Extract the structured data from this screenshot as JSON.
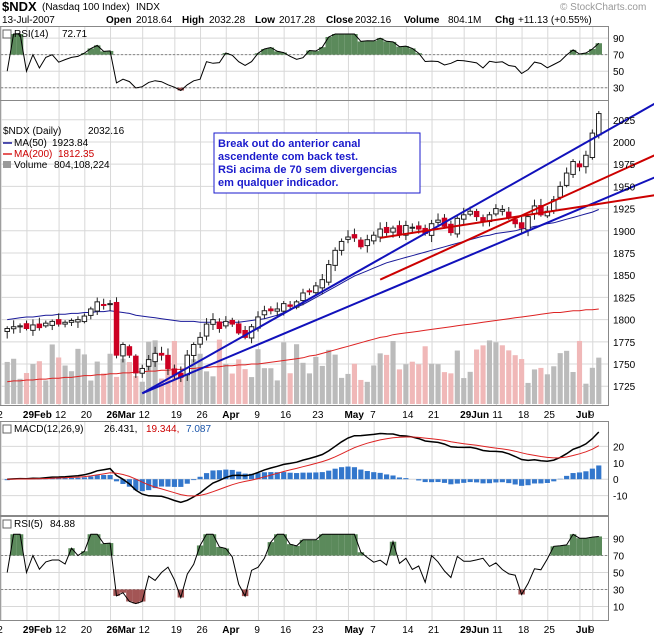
{
  "header": {
    "symbol": "$NDX",
    "name": "(Nasdaq 100 Index)",
    "exchange": "INDX",
    "watermark": "© StockCharts.com",
    "date": "13-Jul-2007",
    "open_label": "Open",
    "open": "2018.64",
    "high_label": "High",
    "high": "2032.28",
    "low_label": "Low",
    "low": "2017.28",
    "close_label": "Close",
    "close": "2032.16",
    "volume_label": "Volume",
    "volume": "804.1M",
    "chg_label": "Chg",
    "chg": "+11.13 (+0.55%)"
  },
  "colors": {
    "up": "#222222",
    "down": "#cc0022",
    "ma50": "#1a1a99",
    "ma200": "#dd2222",
    "trend_blue": "#1111bb",
    "channel_red": "#cc0000",
    "macd": "#000000",
    "signal": "#dd2222",
    "hist": "#3377cc",
    "vol_up": "#bbbbbb",
    "vol_down": "#f0b8b8",
    "rsi_fill_hi": "#5b8a5b",
    "rsi_fill_lo": "#a35555"
  },
  "panels": {
    "rsi14": {
      "label": "RSI(14)",
      "value": "72.71"
    },
    "price": {
      "title": "$NDX (Daily)",
      "title_value": "2032.16",
      "ma50_label": "MA(50)",
      "ma50_value": "1923.84",
      "ma200_label": "MA(200)",
      "ma200_value": "1812.35",
      "volume_label": "Volume",
      "volume_value": "804,108,224"
    },
    "macd": {
      "label": "MACD(12,26,9)",
      "v1": "26.431,",
      "v2": "19.344,",
      "v3": "7.087"
    },
    "rsi5": {
      "label": "RSI(5)",
      "value": "84.88"
    }
  },
  "annotation": {
    "lines": [
      "Break out do anterior canal",
      "ascendente com back test.",
      "RSi acima de 70 sem divergencias",
      "em qualquer indicador."
    ]
  },
  "chart_data": {
    "type": "candlestick",
    "title": "$NDX (Nasdaq 100 Index) Daily",
    "x_labels": [
      "2",
      "29Feb",
      "12",
      "20",
      "26Mar",
      "12",
      "19",
      "26",
      "Apr",
      "9",
      "16",
      "23",
      "May",
      "7",
      "14",
      "21",
      "29Jun",
      "11",
      "18",
      "25",
      "Jul",
      "9"
    ],
    "price_axis": {
      "ylim": [
        1705,
        2045
      ],
      "ticks": [
        1725,
        1750,
        1775,
        1800,
        1825,
        1850,
        1875,
        1900,
        1925,
        1950,
        1975,
        2000,
        2025
      ]
    },
    "close": [
      1790,
      1792,
      1793,
      1790,
      1794,
      1791,
      1796,
      1798,
      1795,
      1797,
      1799,
      1800,
      1804,
      1812,
      1820,
      1816,
      1818,
      1760,
      1772,
      1760,
      1740,
      1745,
      1755,
      1762,
      1760,
      1745,
      1738,
      1735,
      1760,
      1772,
      1780,
      1795,
      1800,
      1790,
      1798,
      1795,
      1785,
      1780,
      1792,
      1803,
      1810,
      1810,
      1812,
      1818,
      1815,
      1820,
      1830,
      1832,
      1838,
      1845,
      1862,
      1878,
      1888,
      1893,
      1892,
      1882,
      1890,
      1895,
      1902,
      1898,
      1903,
      1896,
      1906,
      1904,
      1902,
      1897,
      1908,
      1912,
      1905,
      1898,
      1914,
      1918,
      1922,
      1916,
      1910,
      1918,
      1925,
      1924,
      1915,
      1908,
      1903,
      1916,
      1928,
      1918,
      1922,
      1935,
      1950,
      1965,
      1978,
      1972,
      1985,
      2010,
      2032
    ],
    "ma50": [
      1800,
      1801,
      1802,
      1803,
      1803,
      1804,
      1805,
      1805,
      1806,
      1806,
      1807,
      1807,
      1808,
      1808,
      1809,
      1809,
      1810,
      1809,
      1808,
      1807,
      1805,
      1804,
      1803,
      1802,
      1801,
      1800,
      1799,
      1798,
      1798,
      1798,
      1797,
      1797,
      1797,
      1797,
      1797,
      1797,
      1797,
      1798,
      1799,
      1800,
      1801,
      1803,
      1805,
      1808,
      1811,
      1814,
      1817,
      1821,
      1825,
      1829,
      1833,
      1837,
      1841,
      1845,
      1849,
      1852,
      1855,
      1858,
      1861,
      1864,
      1866,
      1868,
      1870,
      1872,
      1874,
      1876,
      1878,
      1880,
      1882,
      1884,
      1886,
      1888,
      1890,
      1892,
      1894,
      1895,
      1897,
      1898,
      1899,
      1900,
      1902,
      1903,
      1905,
      1906,
      1908,
      1909,
      1911,
      1913,
      1915,
      1917,
      1919,
      1921,
      1924
    ],
    "ma200": [
      1730,
      1731,
      1731,
      1732,
      1732,
      1733,
      1733,
      1734,
      1734,
      1735,
      1735,
      1736,
      1737,
      1737,
      1738,
      1738,
      1739,
      1739,
      1740,
      1740,
      1741,
      1741,
      1742,
      1742,
      1743,
      1743,
      1744,
      1744,
      1745,
      1745,
      1746,
      1746,
      1747,
      1747,
      1748,
      1748,
      1749,
      1749,
      1750,
      1750,
      1751,
      1752,
      1753,
      1754,
      1755,
      1756,
      1757,
      1759,
      1760,
      1762,
      1764,
      1766,
      1768,
      1770,
      1772,
      1774,
      1776,
      1778,
      1780,
      1781,
      1783,
      1784,
      1785,
      1786,
      1787,
      1788,
      1789,
      1790,
      1791,
      1792,
      1793,
      1794,
      1795,
      1796,
      1797,
      1798,
      1799,
      1800,
      1801,
      1802,
      1803,
      1804,
      1805,
      1806,
      1807,
      1808,
      1808,
      1809,
      1810,
      1810,
      1811,
      1811,
      1812
    ],
    "rsi14": {
      "label": "RSI(14)",
      "ticks": [
        30,
        50,
        70,
        90
      ],
      "last": 72.71
    },
    "macd": {
      "label": "MACD(12,26,9)",
      "macd": 26.431,
      "signal": 19.344,
      "histogram": 7.087,
      "ticks": [
        -10,
        0,
        10,
        20
      ]
    },
    "rsi5": {
      "label": "RSI(5)",
      "ticks": [
        10,
        30,
        50,
        70,
        90
      ],
      "last": 84.88
    },
    "trendlines": [
      {
        "color": "blue",
        "from": [
          21,
          1717
        ],
        "to": [
          96,
          2043
        ]
      },
      {
        "color": "blue",
        "from": [
          21,
          1717
        ],
        "to": [
          96,
          1960
        ]
      },
      {
        "color": "red",
        "from": [
          58,
          1845
        ],
        "to": [
          96,
          1985
        ]
      },
      {
        "color": "red",
        "from": [
          58,
          1892
        ],
        "to": [
          96,
          1940
        ]
      }
    ]
  }
}
